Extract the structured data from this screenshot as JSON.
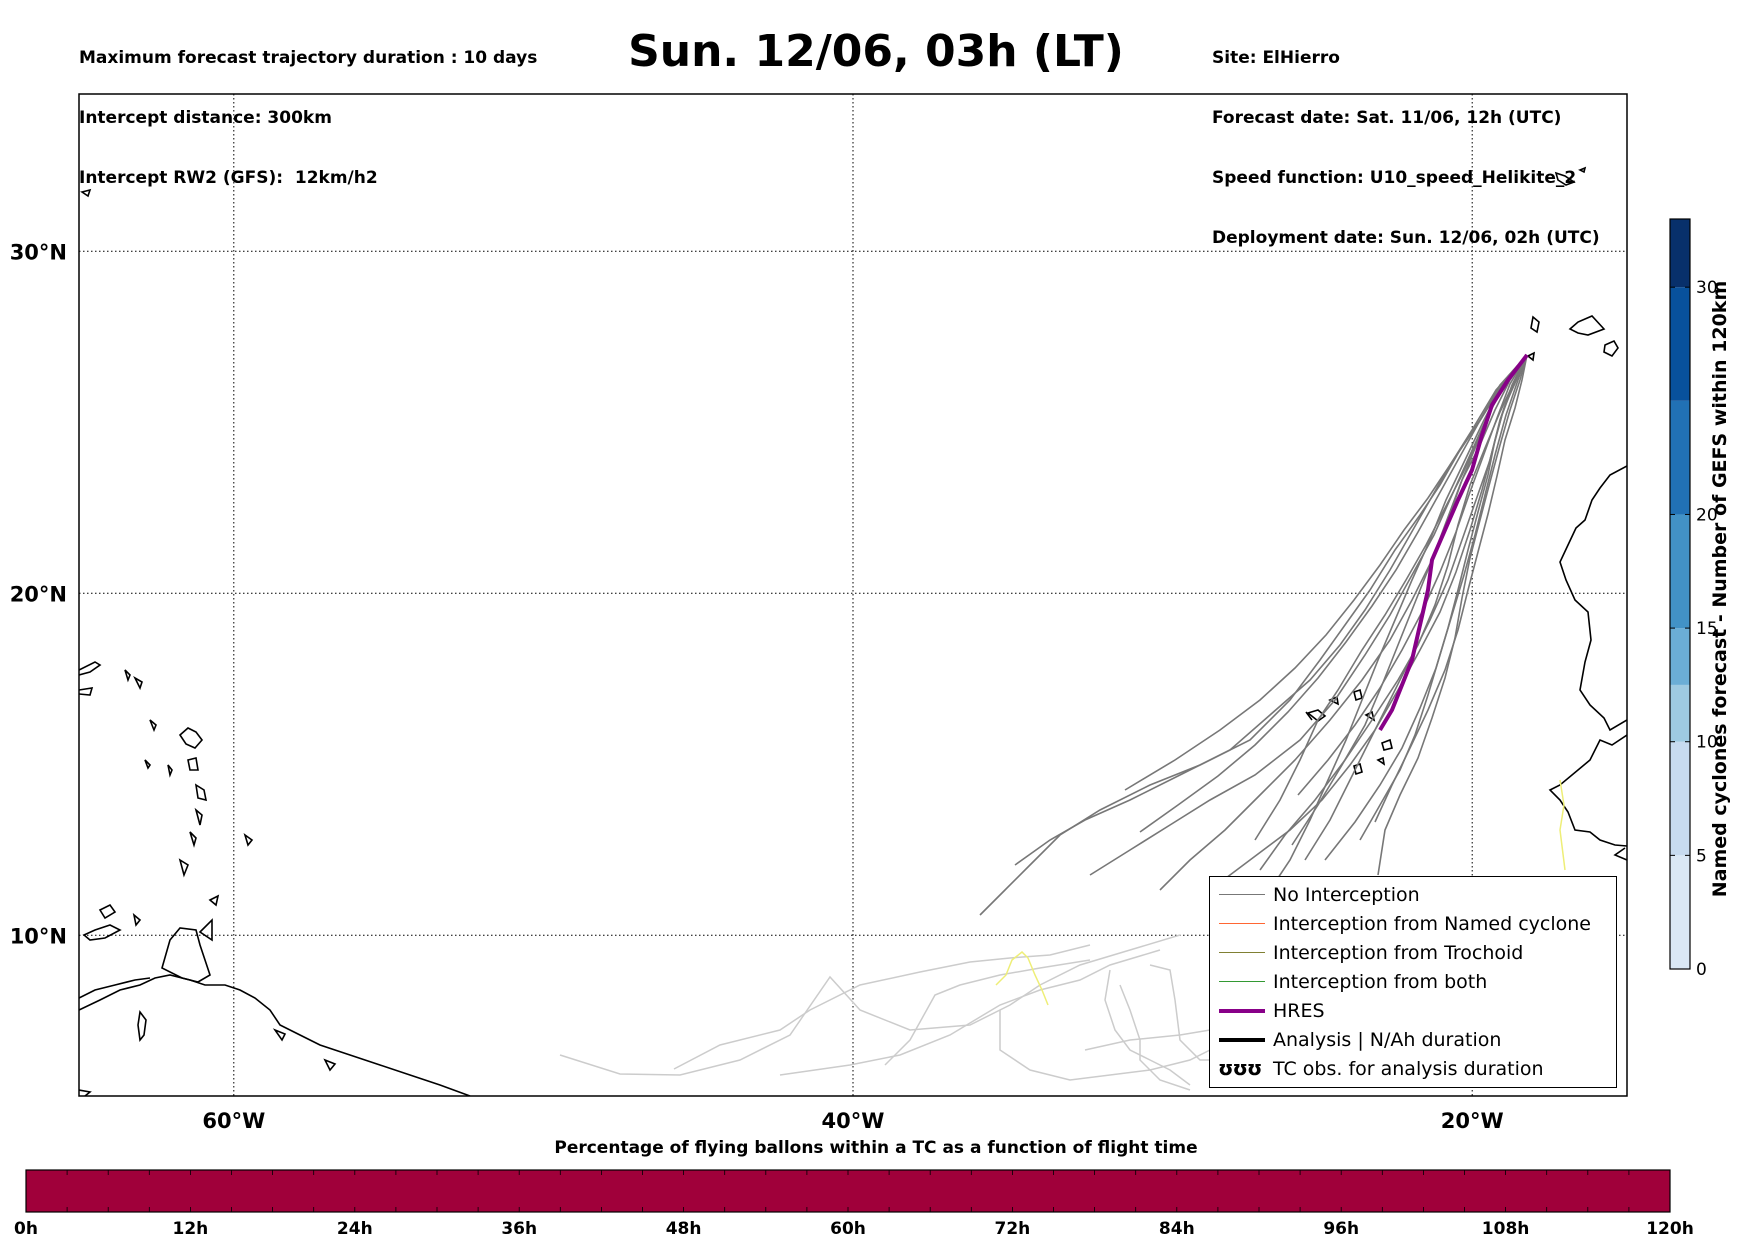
{
  "header": {
    "info_left": [
      "Maximum forecast trajectory duration : 10 days",
      "Intercept distance: 300km",
      "Intercept RW2 (GFS):  12km/h2"
    ],
    "title": "Sun. 12/06, 03h (LT)",
    "info_right": [
      "Site: ElHierro",
      "Forecast date: Sat. 11/06, 12h (UTC)",
      "Speed function: U10_speed_Helikite_2",
      "Deployment date: Sun. 12/06, 02h (UTC)"
    ]
  },
  "map": {
    "lat_labels": [
      "30°N",
      "20°N",
      "10°N"
    ],
    "lon_labels": [
      "60°W",
      "40°W",
      "20°W"
    ],
    "lat_values": [
      30,
      20,
      10
    ],
    "lon_values": [
      -60,
      -40,
      -20
    ],
    "extent": {
      "lon": [
        -65,
        -15
      ],
      "lat": [
        5.3,
        34.6
      ]
    },
    "colors": {
      "no_interception": "#777777",
      "faded_track": "#cccccc",
      "named_cyclone": "#ff6633",
      "trochoid": "#808033",
      "both": "#339933",
      "hres": "#880088",
      "analysis": "#000000",
      "yellow_track": "#eeee77"
    }
  },
  "legend": {
    "items": [
      {
        "label": "No Interception",
        "color": "#777777",
        "width": 1.5
      },
      {
        "label": "Interception from Named cyclone",
        "color": "#ff6633",
        "width": 1.5
      },
      {
        "label": "Interception from Trochoid",
        "color": "#808033",
        "width": 1.5
      },
      {
        "label": "Interception from both",
        "color": "#339933",
        "width": 1.5
      },
      {
        "label": "HRES",
        "color": "#880088",
        "width": 4
      },
      {
        "label": "Analysis | N/Ah duration",
        "color": "#000000",
        "width": 4
      }
    ],
    "tc_obs_label": "TC obs. for analysis duration",
    "tc_obs_symbol": "ʊʊʊ"
  },
  "colorbar_right": {
    "title": "Named cyclones forecast - Number of GEFS within 120km",
    "tick_labels": [
      "0",
      "5",
      "10",
      "15",
      "20",
      "30"
    ],
    "tick_values": [
      0,
      5,
      10,
      15,
      20,
      30
    ],
    "range": [
      0,
      33
    ],
    "colors": [
      "#dae8f5",
      "#c7dbef",
      "#9ecae1",
      "#6baed6",
      "#4292c6",
      "#2171b5",
      "#08519c",
      "#08306b"
    ]
  },
  "colorbar_bottom": {
    "title": "Percentage of flying ballons within a TC as a function of flight time",
    "tick_labels": [
      "0h",
      "12h",
      "24h",
      "36h",
      "48h",
      "60h",
      "72h",
      "84h",
      "96h",
      "108h",
      "120h"
    ],
    "tick_values": [
      0,
      12,
      24,
      36,
      48,
      60,
      72,
      84,
      96,
      108,
      120
    ],
    "range": [
      0,
      120
    ],
    "fill_color": "#a0003a"
  }
}
